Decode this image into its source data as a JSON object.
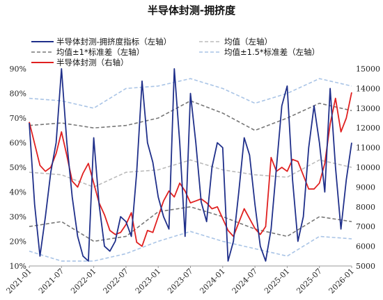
{
  "chart_data": {
    "type": "line",
    "title": "半导体封测-拥挤度",
    "x_ticks": [
      "2021-01",
      "2021-07",
      "2022-01",
      "2022-07",
      "2023-01",
      "2023-07",
      "2024-01",
      "2024-07",
      "2025-01",
      "2025-07",
      "2026-01"
    ],
    "x_range": [
      "2021-01",
      "2026-01"
    ],
    "y_left": {
      "ticks": [
        "10%",
        "20%",
        "30%",
        "40%",
        "50%",
        "60%",
        "70%",
        "80%",
        "90%"
      ],
      "range": [
        10,
        90
      ]
    },
    "y_right": {
      "ticks": [
        "5000",
        "6000",
        "7000",
        "8000",
        "9000",
        "10000",
        "11000",
        "12000",
        "13000",
        "14000",
        "15000"
      ],
      "range": [
        5000,
        15000
      ]
    },
    "legend": [
      {
        "label": "半导体封测-拥挤度指标（左轴）",
        "color": "#1f2f8a",
        "style": "solid"
      },
      {
        "label": "均值（左轴）",
        "color": "#bbbbbb",
        "style": "dashed"
      },
      {
        "label": "均值±1*标准差（左轴）",
        "color": "#777777",
        "style": "dashed"
      },
      {
        "label": "均值±1.5*标准差（左轴）",
        "color": "#a9c4e6",
        "style": "dashed"
      },
      {
        "label": "半导体封测（右轴）",
        "color": "#e02020",
        "style": "solid"
      }
    ],
    "series": [
      {
        "name": "半导体封测-拥挤度指标（左轴）",
        "axis": "left",
        "color": "#1f2f8a",
        "x": [
          "2021-01",
          "2021-02",
          "2021-03",
          "2021-04",
          "2021-05",
          "2021-06",
          "2021-07",
          "2021-08",
          "2021-09",
          "2021-10",
          "2021-11",
          "2021-12",
          "2022-01",
          "2022-02",
          "2022-03",
          "2022-04",
          "2022-05",
          "2022-06",
          "2022-07",
          "2022-08",
          "2022-09",
          "2022-10",
          "2022-11",
          "2022-12",
          "2023-01",
          "2023-02",
          "2023-03",
          "2023-04",
          "2023-05",
          "2023-06",
          "2023-07",
          "2023-08",
          "2023-09",
          "2023-10",
          "2023-11",
          "2023-12",
          "2024-01",
          "2024-02",
          "2024-03",
          "2024-04",
          "2024-05",
          "2024-06",
          "2024-07",
          "2024-08",
          "2024-09",
          "2024-10",
          "2024-11",
          "2024-12",
          "2025-01",
          "2025-02",
          "2025-03",
          "2025-04",
          "2025-05",
          "2025-06",
          "2025-07",
          "2025-08",
          "2025-09",
          "2025-10",
          "2025-11",
          "2025-12",
          "2026-01"
        ],
        "values": [
          68,
          35,
          14,
          30,
          48,
          60,
          90,
          60,
          38,
          22,
          14,
          12,
          62,
          35,
          18,
          16,
          20,
          30,
          28,
          22,
          48,
          85,
          60,
          52,
          38,
          30,
          25,
          90,
          60,
          22,
          80,
          60,
          36,
          28,
          50,
          60,
          58,
          12,
          20,
          40,
          62,
          55,
          35,
          18,
          12,
          25,
          50,
          75,
          83,
          45,
          20,
          30,
          58,
          75,
          60,
          40,
          82,
          50,
          25,
          45,
          60
        ]
      },
      {
        "name": "均值（左轴）",
        "axis": "left",
        "color": "#bbbbbb",
        "x": [
          "2021-01",
          "2021-07",
          "2022-01",
          "2022-07",
          "2023-01",
          "2023-07",
          "2024-01",
          "2024-07",
          "2025-01",
          "2025-07",
          "2026-01"
        ],
        "values": [
          48,
          47,
          42,
          48,
          49,
          53,
          49,
          47,
          46,
          53,
          50
        ]
      },
      {
        "name": "均值+1*标准差（左轴）",
        "axis": "left",
        "color": "#777777",
        "x": [
          "2021-01",
          "2021-07",
          "2022-01",
          "2022-07",
          "2023-01",
          "2023-07",
          "2024-01",
          "2024-07",
          "2025-01",
          "2025-07",
          "2026-01"
        ],
        "values": [
          67,
          68,
          66,
          67,
          70,
          77,
          72,
          65,
          70,
          76,
          73
        ]
      },
      {
        "name": "均值-1*标准差（左轴）",
        "axis": "left",
        "color": "#777777",
        "x": [
          "2021-01",
          "2021-07",
          "2022-01",
          "2022-07",
          "2023-01",
          "2023-07",
          "2024-01",
          "2024-07",
          "2025-01",
          "2025-07",
          "2026-01"
        ],
        "values": [
          26,
          28,
          20,
          22,
          32,
          34,
          30,
          25,
          22,
          30,
          28
        ]
      },
      {
        "name": "均值+1.5*标准差（左轴）",
        "axis": "left",
        "color": "#a9c4e6",
        "x": [
          "2021-01",
          "2021-07",
          "2022-01",
          "2022-07",
          "2023-01",
          "2023-07",
          "2024-01",
          "2024-07",
          "2025-01",
          "2025-07",
          "2026-01"
        ],
        "values": [
          78,
          77,
          74,
          82,
          83,
          86,
          82,
          76,
          80,
          86,
          83
        ]
      },
      {
        "name": "均值-1.5*标准差（左轴）",
        "axis": "left",
        "color": "#a9c4e6",
        "x": [
          "2021-01",
          "2021-07",
          "2022-01",
          "2022-07",
          "2023-01",
          "2023-07",
          "2024-01",
          "2024-07",
          "2025-01",
          "2025-07",
          "2026-01"
        ],
        "values": [
          16,
          12,
          12,
          15,
          20,
          24,
          20,
          17,
          14,
          22,
          21
        ]
      },
      {
        "name": "半导体封测（右轴）",
        "axis": "right",
        "color": "#e02020",
        "x": [
          "2021-01",
          "2021-02",
          "2021-03",
          "2021-04",
          "2021-05",
          "2021-06",
          "2021-07",
          "2021-08",
          "2021-09",
          "2021-10",
          "2021-11",
          "2021-12",
          "2022-01",
          "2022-02",
          "2022-03",
          "2022-04",
          "2022-05",
          "2022-06",
          "2022-07",
          "2022-08",
          "2022-09",
          "2022-10",
          "2022-11",
          "2022-12",
          "2023-01",
          "2023-02",
          "2023-03",
          "2023-04",
          "2023-05",
          "2023-06",
          "2023-07",
          "2023-08",
          "2023-09",
          "2023-10",
          "2023-11",
          "2023-12",
          "2024-01",
          "2024-02",
          "2024-03",
          "2024-04",
          "2024-05",
          "2024-06",
          "2024-07",
          "2024-08",
          "2024-09",
          "2024-10",
          "2024-11",
          "2024-12",
          "2025-01",
          "2025-02",
          "2025-03",
          "2025-04",
          "2025-05",
          "2025-06",
          "2025-07",
          "2025-08",
          "2025-09",
          "2025-10",
          "2025-11",
          "2025-12",
          "2026-01"
        ],
        "values": [
          12300,
          11200,
          10100,
          9800,
          10000,
          10700,
          11800,
          10600,
          9300,
          9000,
          9700,
          10200,
          9200,
          8200,
          7600,
          6800,
          6600,
          6700,
          7100,
          7700,
          6200,
          6000,
          6800,
          6700,
          7500,
          8300,
          8800,
          8500,
          9200,
          8800,
          8200,
          8300,
          8400,
          8200,
          7900,
          8000,
          7400,
          6800,
          6500,
          7200,
          7900,
          7400,
          6900,
          6600,
          7000,
          10500,
          9800,
          10000,
          9800,
          10400,
          10300,
          9600,
          8900,
          8900,
          9200,
          10200,
          12200,
          13500,
          11800,
          12500,
          13800
        ]
      }
    ]
  }
}
